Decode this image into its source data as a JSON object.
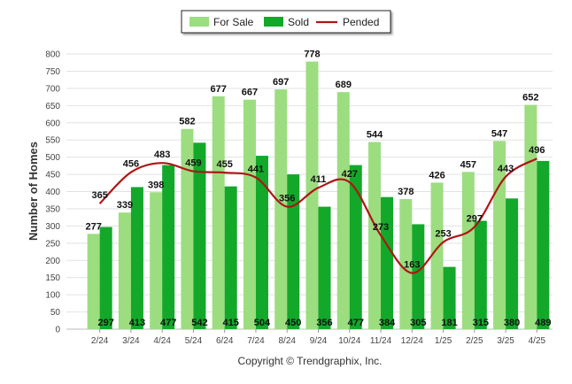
{
  "chart_data": {
    "type": "bar",
    "categories": [
      "2/24",
      "3/24",
      "4/24",
      "5/24",
      "6/24",
      "7/24",
      "8/24",
      "9/24",
      "10/24",
      "11/24",
      "12/24",
      "1/25",
      "2/25",
      "3/25",
      "4/25"
    ],
    "series": [
      {
        "name": "For Sale",
        "type": "bar",
        "color": "#9cdd80",
        "values": [
          277,
          339,
          398,
          582,
          677,
          667,
          697,
          778,
          689,
          544,
          378,
          426,
          457,
          547,
          652
        ]
      },
      {
        "name": "Sold",
        "type": "bar",
        "color": "#13a82a",
        "values": [
          297,
          413,
          477,
          542,
          415,
          504,
          450,
          356,
          477,
          384,
          305,
          181,
          315,
          380,
          489
        ]
      },
      {
        "name": "Pended",
        "type": "line",
        "color": "#b01515",
        "values": [
          365,
          456,
          483,
          459,
          455,
          441,
          356,
          411,
          427,
          273,
          163,
          253,
          297,
          443,
          496
        ]
      }
    ],
    "ylabel": "Number of Homes",
    "xlabel": "",
    "ylim": [
      0,
      800
    ],
    "yticks": [
      0,
      50,
      100,
      150,
      200,
      250,
      300,
      350,
      400,
      450,
      500,
      550,
      600,
      650,
      700,
      750,
      800
    ],
    "grid": true,
    "legend_position": "top-center",
    "credit": "Copyright © Trendgraphix, Inc."
  }
}
